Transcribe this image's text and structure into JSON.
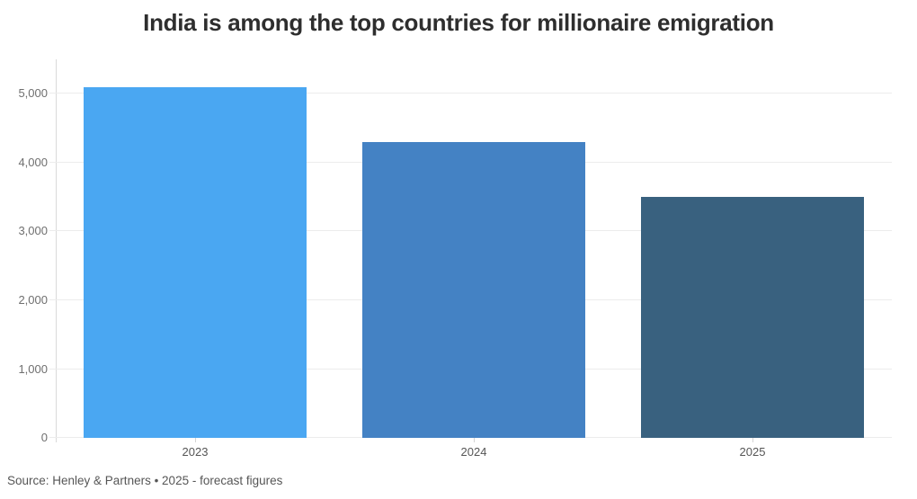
{
  "title": "India is among the top countries for millionaire emigration",
  "source_note": "Source: Henley & Partners • 2025 - forecast figures",
  "chart_data": {
    "type": "bar",
    "title": "India is among the top countries for millionaire emigration",
    "categories": [
      "2023",
      "2024",
      "2025"
    ],
    "values": [
      5100,
      4300,
      3500
    ],
    "bar_colors": [
      "#4aa7f2",
      "#4482c4",
      "#39617f"
    ],
    "xlabel": "",
    "ylabel": "",
    "ylim": [
      0,
      5500
    ],
    "yticks": [
      0,
      1000,
      2000,
      3000,
      4000,
      5000
    ],
    "ytick_labels": [
      "0",
      "1,000",
      "2,000",
      "3,000",
      "4,000",
      "5,000"
    ],
    "grid": "horizontal",
    "legend": "none",
    "source": "Source: Henley & Partners • 2025 - forecast figures"
  },
  "colors": {
    "background": "#ffffff",
    "title_text": "#2e2e2e",
    "ytick_text": "#6f6f6f",
    "xtick_text": "#555555",
    "source_text": "#565656",
    "gridline": "#ececec",
    "axis_line": "#d9d9d9"
  }
}
